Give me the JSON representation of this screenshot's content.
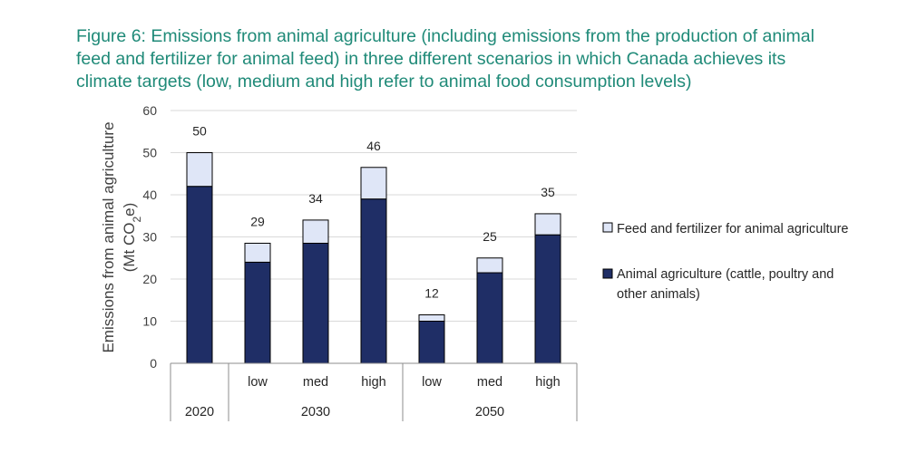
{
  "title_lines": [
    "Figure 6: Emissions from animal agriculture (including emissions from the production of animal",
    "feed and fertilizer for animal feed) in three different scenarios in which Canada achieves its",
    "climate targets (low, medium and high refer to animal food consumption levels)"
  ],
  "colors": {
    "title": "#1f8a78",
    "animal": "#1f2e66",
    "feed": "#dfe6f7",
    "grid": "#d9d9d9"
  },
  "chart_data": {
    "type": "bar",
    "stacked": true,
    "title": "Figure 6: Emissions from animal agriculture (including emissions from the production of animal feed and fertilizer for animal feed) in three different scenarios in which Canada achieves its climate targets (low, medium and high refer to animal food consumption levels)",
    "ylabel_line1": "Emissions from animal agriculture",
    "ylabel_line2": "(Mt CO",
    "ylabel_sub": "2",
    "ylabel_end": "e)",
    "ylim": [
      0,
      60
    ],
    "yticks": [
      0,
      10,
      20,
      30,
      40,
      50,
      60
    ],
    "grid": true,
    "legend_position": "right",
    "categories": [
      {
        "label": "",
        "group": "2020"
      },
      {
        "label": "low",
        "group": "2030"
      },
      {
        "label": "med",
        "group": "2030"
      },
      {
        "label": "high",
        "group": "2030"
      },
      {
        "label": "low",
        "group": "2050"
      },
      {
        "label": "med",
        "group": "2050"
      },
      {
        "label": "high",
        "group": "2050"
      }
    ],
    "groups": [
      "2020",
      "2030",
      "2050"
    ],
    "series": [
      {
        "name": "Animal agriculture (cattle, poultry and other animals)",
        "legend_lines": [
          "Animal agriculture (cattle, poultry and",
          "other animals)"
        ],
        "values": [
          42,
          24,
          28.5,
          39,
          10,
          21.5,
          30.5
        ]
      },
      {
        "name": "Feed and fertilizer for animal agriculture",
        "legend_lines": [
          "Feed and fertilizer for animal agriculture"
        ],
        "values": [
          8,
          4.5,
          5.5,
          7.5,
          1.5,
          3.5,
          5
        ]
      }
    ],
    "totals": [
      "50",
      "29",
      "34",
      "46",
      "12",
      "25",
      "35"
    ]
  }
}
